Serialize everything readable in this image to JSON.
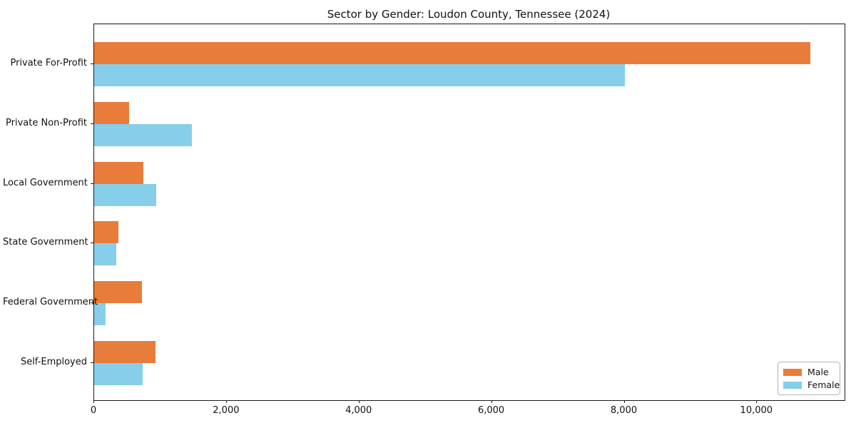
{
  "title": "Sector by Gender: Loudon County, Tennessee (2024)",
  "colors": {
    "male": "#e87d3b",
    "female": "#87ceeb",
    "spine": "#1a1a1a",
    "text": "#111111",
    "legend_border": "#b3b3b3"
  },
  "legend": {
    "items": [
      {
        "label": "Male",
        "color": "#e87d3b"
      },
      {
        "label": "Female",
        "color": "#87ceeb"
      }
    ],
    "position": "lower right"
  },
  "chart_data": {
    "type": "bar",
    "orientation": "horizontal",
    "title": "Sector by Gender: Loudon County, Tennessee (2024)",
    "categories": [
      "Private For-Profit",
      "Private Non-Profit",
      "Local Government",
      "State Government",
      "Federal Government",
      "Self-Employed"
    ],
    "series": [
      {
        "name": "Male",
        "color": "#e87d3b",
        "values": [
          10800,
          530,
          740,
          370,
          720,
          930
        ]
      },
      {
        "name": "Female",
        "color": "#87ceeb",
        "values": [
          8000,
          1470,
          940,
          330,
          170,
          730
        ]
      }
    ],
    "xlabel": "",
    "ylabel": "",
    "xlim": [
      0,
      11320
    ],
    "x_ticks": [
      0,
      2000,
      4000,
      6000,
      8000,
      10000
    ],
    "x_tick_labels": [
      "0",
      "2,000",
      "4,000",
      "6,000",
      "8,000",
      "10,000"
    ],
    "grid": false,
    "legend_position": "lower right"
  }
}
